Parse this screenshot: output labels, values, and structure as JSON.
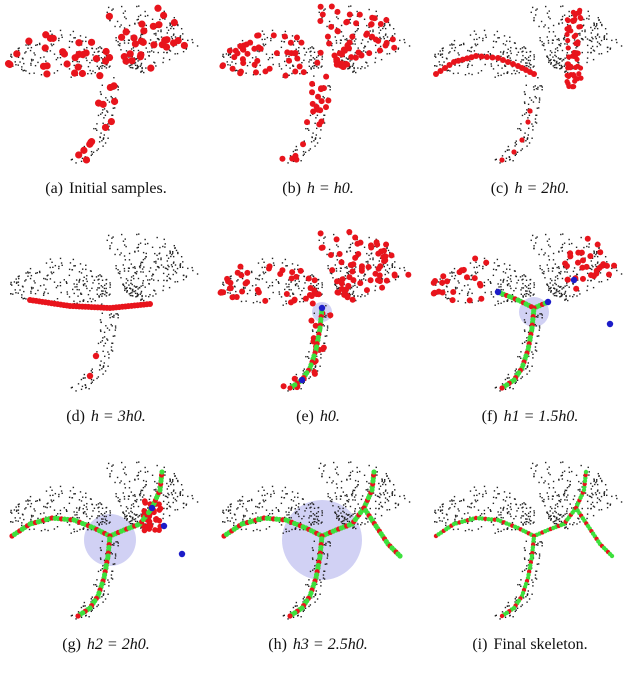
{
  "figure": {
    "panels": [
      {
        "id": "a",
        "label": "(a)",
        "caption": "Initial samples.",
        "math": false,
        "h": 0,
        "dots": "big",
        "curve": false,
        "circle": false,
        "blue": false,
        "green": false,
        "final": false
      },
      {
        "id": "b",
        "label": "(b)",
        "caption": "h = h0.",
        "math": true,
        "h": 1,
        "dots": "medium",
        "curve": false,
        "circle": false,
        "blue": false,
        "green": false,
        "final": false
      },
      {
        "id": "c",
        "label": "(c)",
        "caption": "h = 2h0.",
        "math": true,
        "h": 2,
        "dots": "contract",
        "curve": false,
        "circle": false,
        "blue": false,
        "green": false,
        "final": false
      },
      {
        "id": "d",
        "label": "(d)",
        "caption": "h = 3h0.",
        "math": true,
        "h": 3,
        "dots": "line",
        "curve": false,
        "circle": false,
        "blue": false,
        "green": false,
        "final": false
      },
      {
        "id": "e",
        "label": "(e)",
        "caption": "h0.",
        "math": true,
        "h": 1,
        "dots": "medium",
        "curve": true,
        "circle": true,
        "circle_r": 1,
        "blue": true,
        "green": true,
        "final": false
      },
      {
        "id": "f",
        "label": "(f)",
        "caption": "h1 = 1.5h0.",
        "math": true,
        "h": 1.5,
        "dots": "medium-wings",
        "curve": true,
        "circle": true,
        "circle_r": 1.5,
        "blue": true,
        "green": true,
        "final": false
      },
      {
        "id": "g",
        "label": "(g)",
        "caption": "h2 = 2h0.",
        "math": true,
        "h": 2,
        "dots": "right-branch",
        "curve": true,
        "circle": true,
        "circle_r": 2.6,
        "blue": true,
        "green": true,
        "final": false
      },
      {
        "id": "h",
        "label": "(h)",
        "caption": "h3 = 2.5h0.",
        "math": true,
        "h": 2.5,
        "dots": "none",
        "curve": true,
        "circle": true,
        "circle_r": 4,
        "blue": false,
        "green": true,
        "final": false
      },
      {
        "id": "i",
        "label": "(i)",
        "caption": "Final skeleton.",
        "math": false,
        "h": 0,
        "dots": "none",
        "curve": true,
        "circle": false,
        "blue": false,
        "green": true,
        "final": true
      }
    ],
    "colors": {
      "points": "#222222",
      "samples": "#e8141c",
      "branch": "#3de03d",
      "joint": "#1c1cc8",
      "neighborhood": "#b8b8ee"
    }
  }
}
